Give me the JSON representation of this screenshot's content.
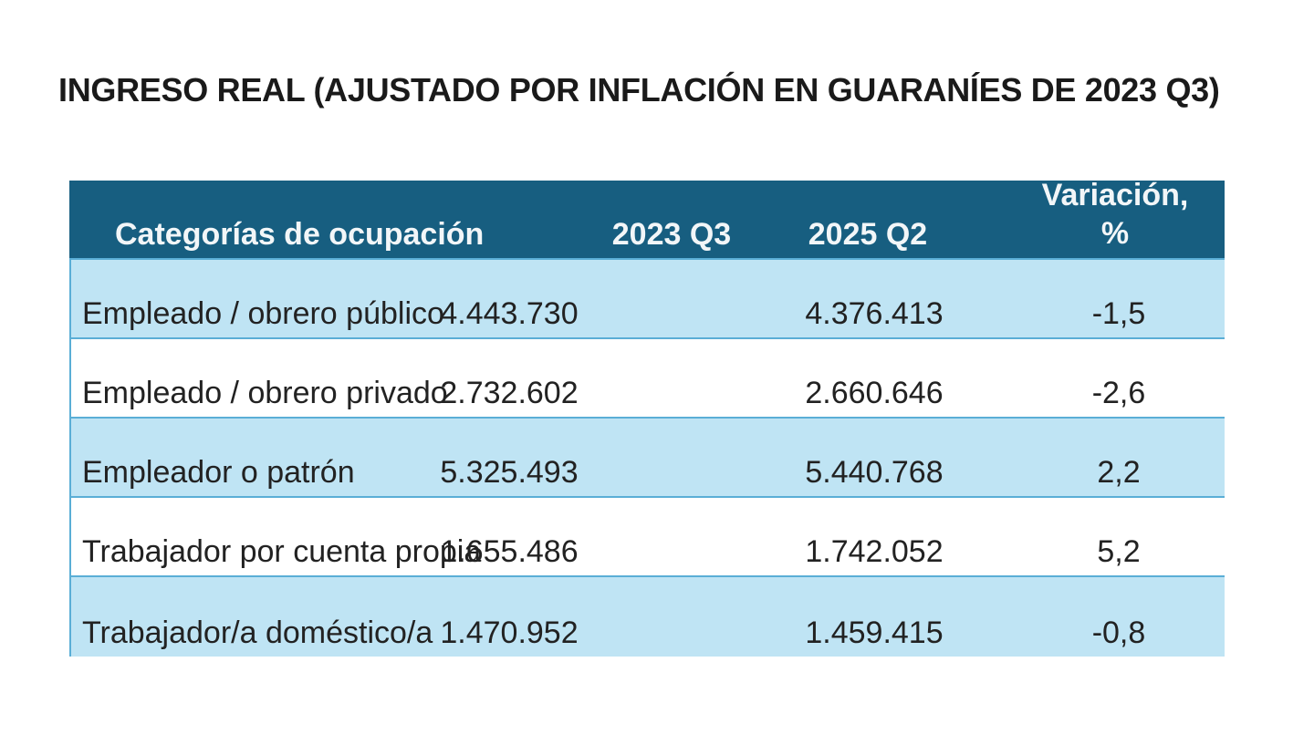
{
  "title": "INGRESO REAL (AJUSTADO POR INFLACIÓN EN GUARANÍES DE 2023 Q3)",
  "colors": {
    "header_bg": "#175e80",
    "row_band": "#bfe4f4",
    "border": "#5aaed6"
  },
  "table": {
    "headers": [
      "Categorías de ocupación",
      "2023 Q3",
      "2025 Q2",
      "Variación, %"
    ],
    "header_variation_line1": "Variación,",
    "header_variation_line2": "%",
    "rows": [
      {
        "category": "Empleado / obrero público",
        "q3_2023": "4.443.730",
        "q2_2025": "4.376.413",
        "variation": "-1,5"
      },
      {
        "category": "Empleado / obrero privado",
        "q3_2023": "2.732.602",
        "q2_2025": "2.660.646",
        "variation": "-2,6"
      },
      {
        "category": "Empleador o patrón",
        "q3_2023": "5.325.493",
        "q2_2025": "5.440.768",
        "variation": "2,2"
      },
      {
        "category": "Trabajador por cuenta propia",
        "q3_2023": "1.655.486",
        "q2_2025": "1.742.052",
        "variation": "5,2"
      },
      {
        "category": "Trabajador/a doméstico/a",
        "q3_2023": "1.470.952",
        "q2_2025": "1.459.415",
        "variation": "-0,8"
      }
    ]
  }
}
